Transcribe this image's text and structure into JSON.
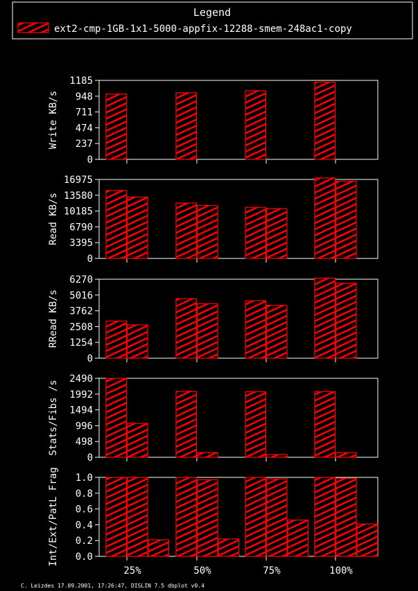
{
  "legend": {
    "title": "Legend",
    "entry": "ext2-cmp-1GB-1x1-5000-appfix-12288-smem-248ac1-copy"
  },
  "colors": {
    "background": "#000000",
    "bar": "#ff0000",
    "axis": "#ffffff",
    "text": "#ffffff"
  },
  "footer": "C. Leizdes 17.09.2001, 17:26:47, DISLIN 7.5 dbplot v0.4",
  "chart_data": [
    {
      "type": "bar",
      "ylabel": "Write KB/s",
      "categories": [
        "25%",
        "50%",
        "75%",
        "100%"
      ],
      "yticks": [
        "0",
        "237",
        "474",
        "711",
        "948",
        "1185"
      ],
      "ylim": [
        0,
        1185
      ],
      "series": [
        {
          "values": [
            980,
            1000,
            1030,
            1160
          ]
        }
      ]
    },
    {
      "type": "bar",
      "ylabel": "Read KB/s",
      "categories": [
        "25%",
        "50%",
        "75%",
        "100%"
      ],
      "yticks": [
        "0",
        "3395",
        "6790",
        "10185",
        "13580",
        "16975"
      ],
      "ylim": [
        0,
        16975
      ],
      "series": [
        {
          "values": [
            14600,
            11900,
            11000,
            17300
          ]
        },
        {
          "values": [
            13200,
            11400,
            10700,
            16600
          ]
        }
      ]
    },
    {
      "type": "bar",
      "ylabel": "RRead KB/s",
      "categories": [
        "25%",
        "50%",
        "75%",
        "100%"
      ],
      "yticks": [
        "0",
        "1254",
        "2508",
        "3762",
        "5016",
        "6270"
      ],
      "ylim": [
        0,
        6270
      ],
      "series": [
        {
          "values": [
            2950,
            4730,
            4560,
            6360
          ]
        },
        {
          "values": [
            2650,
            4330,
            4200,
            5950
          ]
        }
      ]
    },
    {
      "type": "bar",
      "ylabel": "Stats/Fibs /s",
      "categories": [
        "25%",
        "50%",
        "75%",
        "100%"
      ],
      "yticks": [
        "0",
        "498",
        "996",
        "1494",
        "1992",
        "2490"
      ],
      "ylim": [
        0,
        2490
      ],
      "series": [
        {
          "values": [
            2490,
            2080,
            2070,
            2070
          ]
        },
        {
          "values": [
            1070,
            150,
            90,
            150
          ]
        }
      ]
    },
    {
      "type": "bar",
      "ylabel": "Int/Ext/PatL Frag",
      "categories": [
        "25%",
        "50%",
        "75%",
        "100%"
      ],
      "yticks": [
        "0.0",
        "0.2",
        "0.4",
        "0.6",
        "0.8",
        "1.0"
      ],
      "ylim": [
        0,
        1.0
      ],
      "series": [
        {
          "values": [
            1.0,
            1.0,
            1.0,
            1.0
          ]
        },
        {
          "values": [
            1.0,
            0.97,
            0.98,
            0.99
          ]
        },
        {
          "values": [
            0.21,
            0.22,
            0.46,
            0.41
          ]
        }
      ]
    }
  ]
}
